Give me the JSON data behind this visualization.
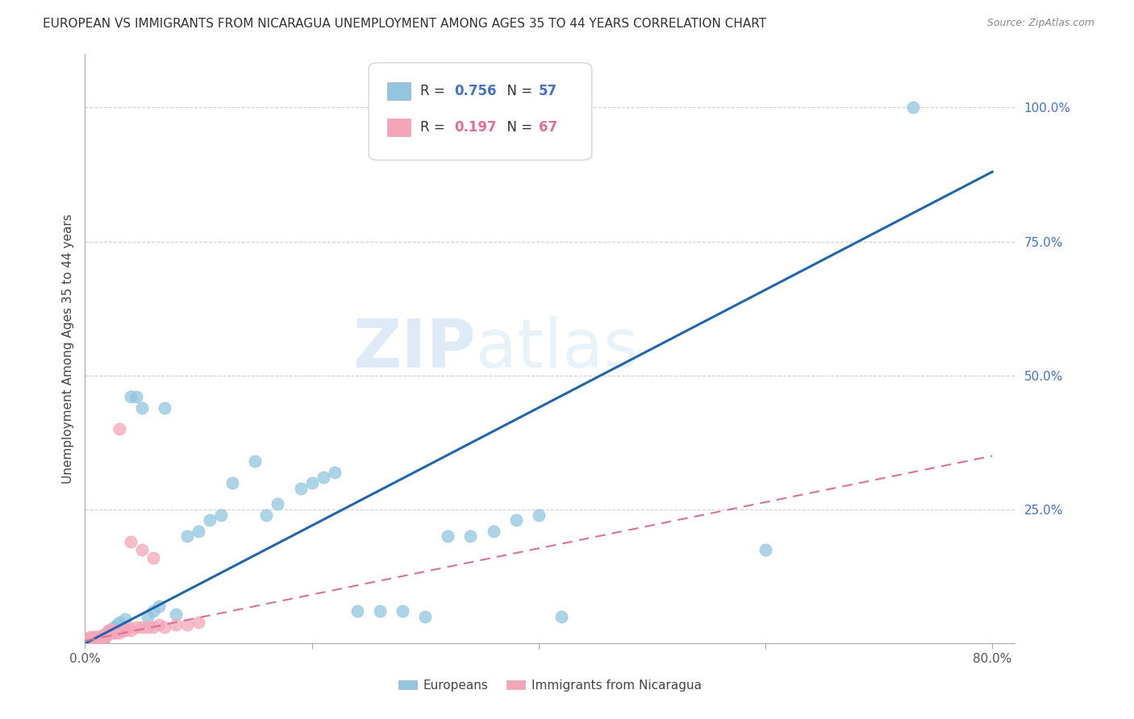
{
  "title": "EUROPEAN VS IMMIGRANTS FROM NICARAGUA UNEMPLOYMENT AMONG AGES 35 TO 44 YEARS CORRELATION CHART",
  "source": "Source: ZipAtlas.com",
  "ylabel": "Unemployment Among Ages 35 to 44 years",
  "xlim": [
    0.0,
    0.82
  ],
  "ylim": [
    0.0,
    1.1
  ],
  "background_color": "#ffffff",
  "grid_color": "#d0d0d0",
  "european_color": "#92c5de",
  "nicaragua_color": "#f4a6b8",
  "european_line_color": "#2166ac",
  "nicaragua_line_color": "#d6729a",
  "R_european": 0.756,
  "N_european": 57,
  "R_nicaragua": 0.197,
  "N_nicaragua": 67,
  "eu_x": [
    0.001,
    0.002,
    0.003,
    0.004,
    0.005,
    0.006,
    0.007,
    0.008,
    0.009,
    0.01,
    0.011,
    0.012,
    0.013,
    0.014,
    0.015,
    0.016,
    0.017,
    0.018,
    0.019,
    0.02,
    0.022,
    0.025,
    0.028,
    0.03,
    0.035,
    0.04,
    0.045,
    0.05,
    0.055,
    0.06,
    0.065,
    0.07,
    0.08,
    0.09,
    0.1,
    0.11,
    0.12,
    0.13,
    0.15,
    0.16,
    0.17,
    0.19,
    0.2,
    0.21,
    0.22,
    0.24,
    0.26,
    0.28,
    0.3,
    0.32,
    0.34,
    0.36,
    0.38,
    0.4,
    0.42,
    0.6,
    0.73
  ],
  "eu_y": [
    0.005,
    0.005,
    0.005,
    0.005,
    0.005,
    0.005,
    0.005,
    0.005,
    0.005,
    0.005,
    0.005,
    0.005,
    0.005,
    0.005,
    0.01,
    0.01,
    0.01,
    0.015,
    0.015,
    0.02,
    0.025,
    0.03,
    0.035,
    0.04,
    0.045,
    0.46,
    0.46,
    0.44,
    0.05,
    0.06,
    0.07,
    0.44,
    0.055,
    0.2,
    0.21,
    0.23,
    0.24,
    0.3,
    0.34,
    0.24,
    0.26,
    0.29,
    0.3,
    0.31,
    0.32,
    0.06,
    0.06,
    0.06,
    0.05,
    0.2,
    0.2,
    0.21,
    0.23,
    0.24,
    0.05,
    0.175,
    1.0
  ],
  "ni_x": [
    0.001,
    0.001,
    0.002,
    0.002,
    0.002,
    0.003,
    0.003,
    0.003,
    0.004,
    0.004,
    0.005,
    0.005,
    0.005,
    0.006,
    0.006,
    0.007,
    0.007,
    0.008,
    0.008,
    0.009,
    0.009,
    0.01,
    0.01,
    0.011,
    0.011,
    0.012,
    0.012,
    0.013,
    0.013,
    0.014,
    0.014,
    0.015,
    0.015,
    0.016,
    0.016,
    0.017,
    0.017,
    0.018,
    0.019,
    0.02,
    0.02,
    0.021,
    0.022,
    0.023,
    0.024,
    0.025,
    0.026,
    0.027,
    0.028,
    0.03,
    0.032,
    0.035,
    0.038,
    0.04,
    0.045,
    0.05,
    0.055,
    0.06,
    0.065,
    0.07,
    0.08,
    0.09,
    0.1,
    0.03,
    0.04,
    0.05,
    0.06
  ],
  "ni_y": [
    0.005,
    0.008,
    0.005,
    0.008,
    0.01,
    0.005,
    0.008,
    0.01,
    0.005,
    0.01,
    0.005,
    0.008,
    0.012,
    0.005,
    0.01,
    0.005,
    0.01,
    0.005,
    0.012,
    0.005,
    0.01,
    0.005,
    0.012,
    0.005,
    0.01,
    0.005,
    0.012,
    0.005,
    0.01,
    0.005,
    0.012,
    0.01,
    0.015,
    0.01,
    0.015,
    0.01,
    0.015,
    0.015,
    0.015,
    0.02,
    0.025,
    0.02,
    0.025,
    0.02,
    0.025,
    0.02,
    0.025,
    0.02,
    0.025,
    0.02,
    0.025,
    0.025,
    0.03,
    0.025,
    0.03,
    0.03,
    0.03,
    0.03,
    0.035,
    0.03,
    0.035,
    0.035,
    0.04,
    0.4,
    0.19,
    0.175,
    0.16
  ],
  "eu_line_x": [
    0.0,
    0.8
  ],
  "eu_line_y": [
    0.0,
    0.88
  ],
  "ni_line_x": [
    0.0,
    0.8
  ],
  "ni_line_y": [
    0.005,
    0.35
  ]
}
